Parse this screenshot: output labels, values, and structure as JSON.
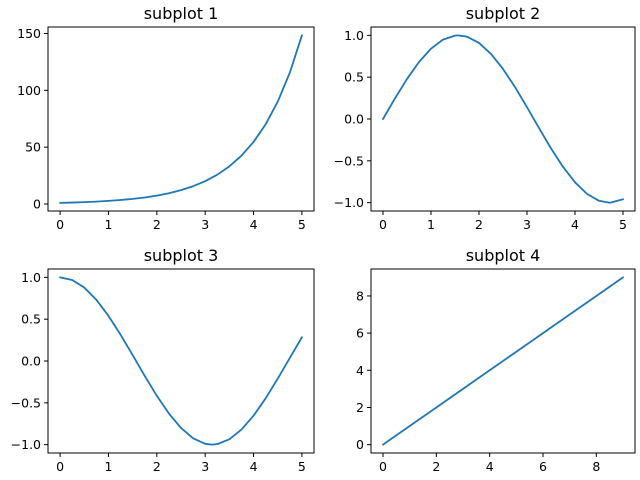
{
  "chart_data": [
    {
      "type": "line",
      "title": "subplot 1",
      "xlabel": "",
      "ylabel": "",
      "xlim": [
        -0.25,
        5.25
      ],
      "ylim": [
        -6.16,
        155.7
      ],
      "xticks": [
        0,
        1,
        2,
        3,
        4,
        5
      ],
      "xtick_labels": [
        "0",
        "1",
        "2",
        "3",
        "4",
        "5"
      ],
      "yticks": [
        0,
        50,
        100,
        150
      ],
      "ytick_labels": [
        "0",
        "50",
        "100",
        "150"
      ],
      "grid": false,
      "series": [
        {
          "color": "#1f77b4",
          "x": [
            0,
            0.25,
            0.5,
            0.75,
            1,
            1.25,
            1.5,
            1.75,
            2,
            2.25,
            2.5,
            2.75,
            3,
            3.25,
            3.5,
            3.75,
            4,
            4.25,
            4.5,
            4.75,
            5
          ],
          "y": [
            1,
            1.28,
            1.65,
            2.12,
            2.72,
            3.49,
            4.48,
            5.75,
            7.39,
            9.49,
            12.18,
            15.64,
            20.09,
            25.79,
            33.12,
            42.52,
            54.6,
            70.11,
            90.02,
            115.58,
            148.41
          ]
        }
      ]
    },
    {
      "type": "line",
      "title": "subplot 2",
      "xlabel": "",
      "ylabel": "",
      "xlim": [
        -0.25,
        5.25
      ],
      "ylim": [
        -1.1,
        1.1
      ],
      "xticks": [
        0,
        1,
        2,
        3,
        4,
        5
      ],
      "xtick_labels": [
        "0",
        "1",
        "2",
        "3",
        "4",
        "5"
      ],
      "yticks": [
        -1.0,
        -0.5,
        0.0,
        0.5,
        1.0
      ],
      "ytick_labels": [
        "−1.0",
        "−0.5",
        "0.0",
        "0.5",
        "1.0"
      ],
      "grid": false,
      "series": [
        {
          "color": "#1f77b4",
          "x": [
            0,
            0.25,
            0.5,
            0.75,
            1,
            1.25,
            1.5,
            1.57,
            1.75,
            2,
            2.25,
            2.5,
            2.75,
            3,
            3.25,
            3.5,
            3.75,
            4,
            4.25,
            4.5,
            4.71,
            4.75,
            5
          ],
          "y": [
            0,
            0.247,
            0.479,
            0.682,
            0.841,
            0.949,
            0.997,
            1.0,
            0.984,
            0.909,
            0.778,
            0.598,
            0.382,
            0.141,
            -0.108,
            -0.351,
            -0.572,
            -0.757,
            -0.895,
            -0.978,
            -1.0,
            -0.999,
            -0.959
          ]
        }
      ]
    },
    {
      "type": "line",
      "title": "subplot 3",
      "xlabel": "",
      "ylabel": "",
      "xlim": [
        -0.25,
        5.25
      ],
      "ylim": [
        -1.1,
        1.1
      ],
      "xticks": [
        0,
        1,
        2,
        3,
        4,
        5
      ],
      "xtick_labels": [
        "0",
        "1",
        "2",
        "3",
        "4",
        "5"
      ],
      "yticks": [
        -1.0,
        -0.5,
        0.0,
        0.5,
        1.0
      ],
      "ytick_labels": [
        "−1.0",
        "−0.5",
        "0.0",
        "0.5",
        "1.0"
      ],
      "grid": false,
      "series": [
        {
          "color": "#1f77b4",
          "x": [
            0,
            0.25,
            0.5,
            0.75,
            1,
            1.25,
            1.5,
            1.75,
            2,
            2.25,
            2.5,
            2.75,
            3,
            3.14,
            3.25,
            3.5,
            3.75,
            4,
            4.25,
            4.5,
            4.75,
            5
          ],
          "y": [
            1.0,
            0.969,
            0.878,
            0.732,
            0.54,
            0.315,
            0.071,
            -0.178,
            -0.416,
            -0.628,
            -0.801,
            -0.924,
            -0.99,
            -1.0,
            -0.994,
            -0.936,
            -0.82,
            -0.654,
            -0.446,
            -0.211,
            0.037,
            0.284
          ]
        }
      ]
    },
    {
      "type": "line",
      "title": "subplot 4",
      "xlabel": "",
      "ylabel": "",
      "xlim": [
        -0.45,
        9.45
      ],
      "ylim": [
        -0.45,
        9.45
      ],
      "xticks": [
        0,
        2,
        4,
        6,
        8
      ],
      "xtick_labels": [
        "0",
        "2",
        "4",
        "6",
        "8"
      ],
      "yticks": [
        0,
        2,
        4,
        6,
        8
      ],
      "ytick_labels": [
        "0",
        "2",
        "4",
        "6",
        "8"
      ],
      "grid": false,
      "series": [
        {
          "color": "#1f77b4",
          "x": [
            0,
            1,
            2,
            3,
            4,
            5,
            6,
            7,
            8,
            9
          ],
          "y": [
            0,
            1,
            2,
            3,
            4,
            5,
            6,
            7,
            8,
            9
          ]
        }
      ]
    }
  ]
}
